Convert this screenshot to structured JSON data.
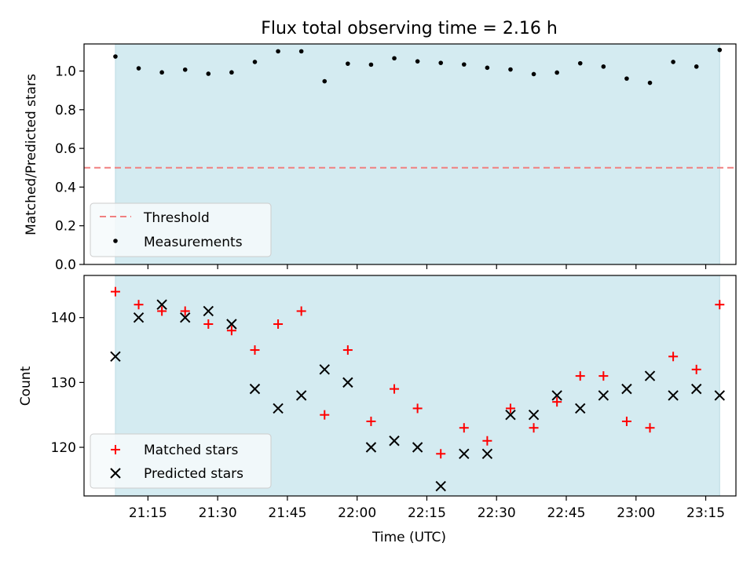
{
  "chart_data": [
    {
      "type": "scatter",
      "title": "Flux total observing time = 2.16 h",
      "xlabel": "",
      "ylabel": "Matched/Predicted stars",
      "ylim": [
        0,
        1.14
      ],
      "yticks": [
        "0.0",
        "0.2",
        "0.4",
        "0.6",
        "0.8",
        "1.0"
      ],
      "shaded_region": {
        "x_start": "21:08",
        "x_end": "23:18",
        "color": "#d4ebf1"
      },
      "threshold": {
        "name": "Threshold",
        "y": 0.5,
        "color": "#f08080",
        "style": "dashed"
      },
      "series": [
        {
          "name": "Measurements",
          "color": "#000000",
          "marker": "dot",
          "x": [
            "21:08",
            "21:13",
            "21:18",
            "21:23",
            "21:28",
            "21:33",
            "21:38",
            "21:43",
            "21:48",
            "21:53",
            "21:58",
            "22:03",
            "22:08",
            "22:13",
            "22:18",
            "22:23",
            "22:28",
            "22:33",
            "22:38",
            "22:43",
            "22:48",
            "22:53",
            "22:58",
            "23:03",
            "23:08",
            "23:13",
            "23:18"
          ],
          "y": [
            1.075,
            1.014,
            0.993,
            1.007,
            0.986,
            0.993,
            1.047,
            1.102,
            1.102,
            0.947,
            1.038,
            1.033,
            1.066,
            1.05,
            1.042,
            1.034,
            1.017,
            1.008,
            0.984,
            0.992,
            1.04,
            1.023,
            0.961,
            0.939,
            1.047,
            1.023,
            1.109
          ]
        }
      ],
      "legend": {
        "position": "bottom-left"
      }
    },
    {
      "type": "scatter",
      "title": "",
      "xlabel": "Time (UTC)",
      "ylabel": "Count",
      "ylim": [
        112.5,
        146.5
      ],
      "yticks": [
        "120",
        "130",
        "140"
      ],
      "xticks": [
        "21:15",
        "21:30",
        "21:45",
        "22:00",
        "22:15",
        "22:30",
        "22:45",
        "23:00",
        "23:15"
      ],
      "shaded_region": {
        "x_start": "21:08",
        "x_end": "23:18",
        "color": "#d4ebf1"
      },
      "series": [
        {
          "name": "Matched stars",
          "color": "#ff0000",
          "marker": "plus",
          "x": [
            "21:08",
            "21:13",
            "21:18",
            "21:23",
            "21:28",
            "21:33",
            "21:38",
            "21:43",
            "21:48",
            "21:53",
            "21:58",
            "22:03",
            "22:08",
            "22:13",
            "22:18",
            "22:23",
            "22:28",
            "22:33",
            "22:38",
            "22:43",
            "22:48",
            "22:53",
            "22:58",
            "23:03",
            "23:08",
            "23:13",
            "23:18"
          ],
          "y": [
            144,
            142,
            141,
            141,
            139,
            138,
            135,
            139,
            141,
            125,
            135,
            124,
            129,
            126,
            119,
            123,
            121,
            126,
            123,
            127,
            131,
            131,
            124,
            123,
            134,
            132,
            142
          ]
        },
        {
          "name": "Predicted stars",
          "color": "#000000",
          "marker": "x",
          "x": [
            "21:08",
            "21:13",
            "21:18",
            "21:23",
            "21:28",
            "21:33",
            "21:38",
            "21:43",
            "21:48",
            "21:53",
            "21:58",
            "22:03",
            "22:08",
            "22:13",
            "22:18",
            "22:23",
            "22:28",
            "22:33",
            "22:38",
            "22:43",
            "22:48",
            "22:53",
            "22:58",
            "23:03",
            "23:08",
            "23:13",
            "23:18"
          ],
          "y": [
            134,
            140,
            142,
            140,
            141,
            139,
            129,
            126,
            128,
            132,
            130,
            120,
            121,
            120,
            114,
            119,
            119,
            125,
            125,
            128,
            126,
            128,
            129,
            131,
            128,
            129,
            128
          ]
        }
      ],
      "legend": {
        "position": "bottom-left"
      }
    }
  ]
}
